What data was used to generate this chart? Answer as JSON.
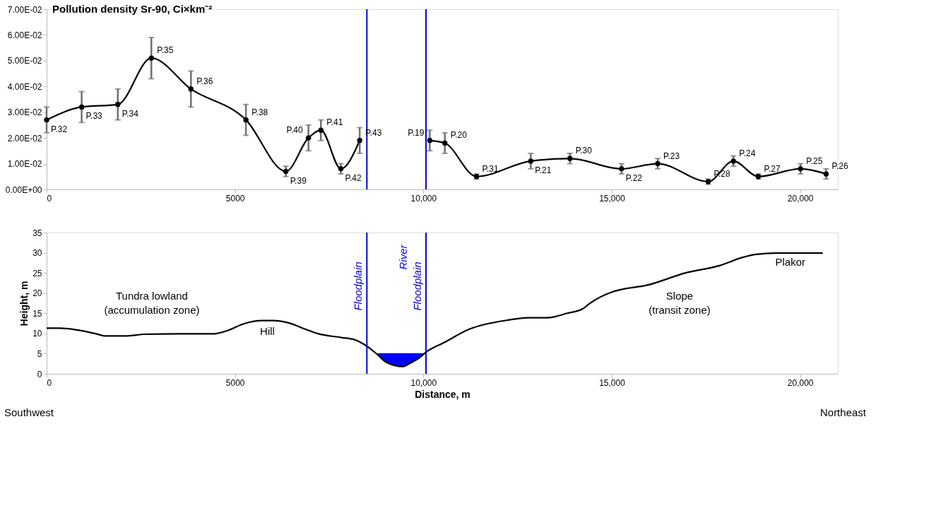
{
  "chart_data": [
    {
      "type": "line",
      "title": "Pollution density Sr-90, Ci×km⁻²",
      "xlim": [
        0,
        21000
      ],
      "xticks": [
        0,
        5000,
        {
          "value": 10000,
          "label": "10,000"
        },
        {
          "value": 15000,
          "label": "15,000"
        },
        {
          "value": 20000,
          "label": "20,000"
        }
      ],
      "ylim": [
        0.0,
        0.07
      ],
      "yticks": [
        {
          "value": 0,
          "label": "0.00E+00"
        },
        {
          "value": 0.01,
          "label": "1.00E-02"
        },
        {
          "value": 0.02,
          "label": "2.00E-02"
        },
        {
          "value": 0.03,
          "label": "3.00E-02"
        },
        {
          "value": 0.04,
          "label": "4.00E-02"
        },
        {
          "value": 0.05,
          "label": "5.00E-02"
        },
        {
          "value": 0.06,
          "label": "6.00E-02"
        },
        {
          "value": 0.07,
          "label": "7.00E-02"
        }
      ],
      "marker": "circle",
      "grid": false,
      "series": [
        {
          "color": "#000000",
          "x": [
            0,
            930,
            1890,
            2780,
            3830,
            5290,
            6350,
            6950,
            7280,
            7810,
            8310,
            9200,
            10170,
            10570,
            11410,
            12850,
            13890,
            15260,
            16220,
            17560,
            18230,
            18890,
            20010,
            20690
          ],
          "values": [
            0.027,
            0.032,
            0.033,
            0.051,
            0.039,
            0.027,
            0.007,
            0.02,
            0.023,
            0.008,
            0.019,
            null,
            0.019,
            0.018,
            0.005,
            0.011,
            0.012,
            0.008,
            0.01,
            0.003,
            0.011,
            0.005,
            0.008,
            0.006
          ],
          "errors": [
            0.005,
            0.006,
            0.006,
            0.008,
            0.007,
            0.006,
            0.002,
            0.005,
            0.004,
            0.002,
            0.005,
            null,
            0.004,
            0.004,
            0.001,
            0.003,
            0.002,
            0.002,
            0.002,
            0.001,
            0.002,
            0.001,
            0.002,
            0.002
          ]
        }
      ],
      "ref_lines": [
        {
          "axis": "x",
          "value": 8500,
          "color": "#0000cc"
        },
        {
          "axis": "x",
          "value": 10070,
          "color": "#0000cc"
        }
      ],
      "annotations": [
        {
          "text": "P.32",
          "x": 0,
          "y": 0.027
        },
        {
          "text": "P.33",
          "x": 930,
          "y": 0.032
        },
        {
          "text": "P.34",
          "x": 1890,
          "y": 0.033
        },
        {
          "text": "P.35",
          "x": 2780,
          "y": 0.051
        },
        {
          "text": "P.36",
          "x": 3830,
          "y": 0.039
        },
        {
          "text": "P.38",
          "x": 5290,
          "y": 0.027
        },
        {
          "text": "P.39",
          "x": 6350,
          "y": 0.007
        },
        {
          "text": "P.40",
          "x": 6950,
          "y": 0.02
        },
        {
          "text": "P.41",
          "x": 7280,
          "y": 0.023
        },
        {
          "text": "P.42",
          "x": 7810,
          "y": 0.008
        },
        {
          "text": "P.43",
          "x": 8310,
          "y": 0.019
        },
        {
          "text": "P.19",
          "x": 10170,
          "y": 0.019
        },
        {
          "text": "P.20",
          "x": 10570,
          "y": 0.018
        },
        {
          "text": "P.31",
          "x": 11410,
          "y": 0.005
        },
        {
          "text": "P.21",
          "x": 12850,
          "y": 0.011
        },
        {
          "text": "P.30",
          "x": 13890,
          "y": 0.012
        },
        {
          "text": "P.22",
          "x": 15260,
          "y": 0.008
        },
        {
          "text": "P.23",
          "x": 16220,
          "y": 0.01
        },
        {
          "text": "P.28",
          "x": 17560,
          "y": 0.003
        },
        {
          "text": "P.24",
          "x": 18230,
          "y": 0.011
        },
        {
          "text": "P.27",
          "x": 18890,
          "y": 0.005
        },
        {
          "text": "P.25",
          "x": 20010,
          "y": 0.008
        },
        {
          "text": "P.26",
          "x": 20690,
          "y": 0.006
        }
      ]
    },
    {
      "type": "line",
      "xlabel": "Distance, m",
      "ylabel": "Height, m",
      "xlim": [
        0,
        21000
      ],
      "xticks": [
        0,
        5000,
        {
          "value": 10000,
          "label": "10,000"
        },
        {
          "value": 15000,
          "label": "15,000"
        },
        {
          "value": 20000,
          "label": "20,000"
        }
      ],
      "ylim": [
        0,
        35
      ],
      "yticks": [
        0,
        5,
        10,
        15,
        20,
        25,
        30,
        35
      ],
      "marker": "none",
      "grid": false,
      "series": [
        {
          "type": "area",
          "name": "River",
          "color": "#0000ff",
          "x": [
            8790,
            9010,
            9460,
            9620,
            9850,
            10030
          ],
          "values": [
            5.1,
            5.1,
            5.1,
            5.1,
            5.1,
            5.1
          ]
        },
        {
          "color": "#000000",
          "x": [
            0,
            340,
            1320,
            1540,
            2140,
            2590,
            3480,
            4420,
            4830,
            5200,
            5720,
            6020,
            6470,
            6850,
            7220,
            7820,
            8190,
            8540,
            8790,
            9010,
            9460,
            9620,
            9850,
            10120,
            10520,
            11230,
            12240,
            12770,
            13290,
            13820,
            14230,
            14410,
            15020,
            15310,
            15910,
            16960,
            17860,
            18460,
            18840,
            19360,
            20600
          ],
          "values": [
            11.3,
            11.3,
            9.9,
            9.4,
            9.4,
            9.8,
            9.9,
            9.9,
            10.8,
            12.3,
            13.2,
            13.2,
            12.5,
            11.1,
            9.9,
            9.0,
            8.4,
            6.6,
            4.7,
            2.9,
            1.8,
            2.5,
            3.7,
            5.7,
            7.6,
            11.1,
            13.3,
            13.9,
            13.9,
            15.0,
            16.1,
            17.4,
            20.3,
            21.0,
            21.9,
            25.0,
            26.8,
            28.8,
            29.6,
            29.9,
            29.9
          ]
        }
      ],
      "ref_lines": [
        {
          "axis": "x",
          "value": 8500,
          "label": "Floodplain",
          "color": "#0000cc"
        },
        {
          "axis": "x",
          "value": 10070,
          "label": "Floodplain",
          "color": "#0000cc"
        }
      ],
      "annotations": [
        "Tundra lowland\n(accumulation zone)",
        "Hill",
        "Slope\n(transit zone)",
        "Plakor",
        "Southwest",
        "Northeast"
      ]
    }
  ]
}
